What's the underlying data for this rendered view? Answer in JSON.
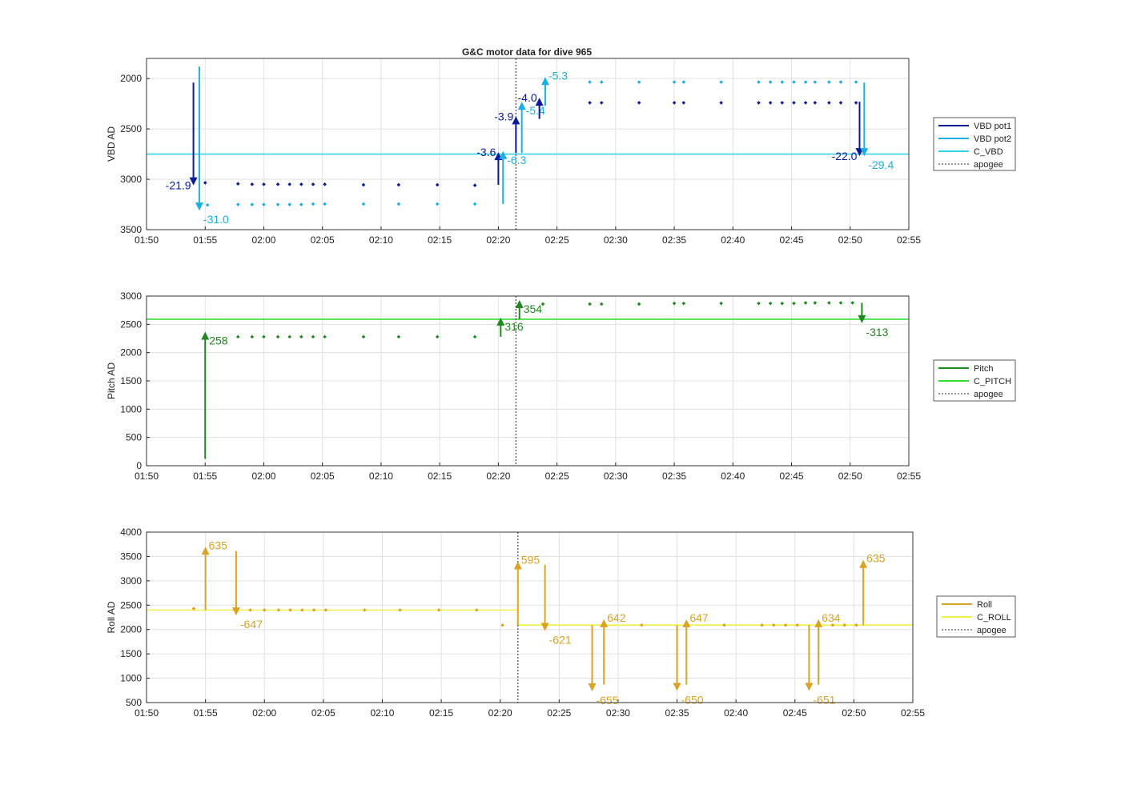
{
  "title": "G&C motor data for dive 965",
  "colors": {
    "vbd_pot1": "#0a1a9a",
    "vbd_pot2": "#1ab0e6",
    "c_vbd": "#38d2e8",
    "pitch": "#1e8a1e",
    "c_pitch": "#33dd33",
    "roll": "#d9a326",
    "c_roll": "#f2ee4a",
    "apogee": "#555555",
    "grid": "#e1e1e1",
    "axis": "#222222"
  },
  "chart_data": [
    {
      "type": "scatter",
      "ylabel": "VBD AD",
      "xlabel": "",
      "y_reversed": true,
      "xlim": [
        "01:50",
        "02:55"
      ],
      "ylim": [
        1800,
        3500
      ],
      "xticks": [
        "01:50",
        "01:55",
        "02:00",
        "02:05",
        "02:10",
        "02:15",
        "02:20",
        "02:25",
        "02:30",
        "02:35",
        "02:40",
        "02:45",
        "02:50",
        "02:55"
      ],
      "yticks": [
        "2000",
        "2500",
        "3000",
        "3500"
      ],
      "legend": {
        "placement": "right",
        "entries": [
          {
            "label": "VBD pot1",
            "color_key": "vbd_pot1",
            "style": "solid"
          },
          {
            "label": "VBD pot2",
            "color_key": "vbd_pot2",
            "style": "solid"
          },
          {
            "label": "C_VBD",
            "color_key": "c_vbd",
            "style": "solid"
          },
          {
            "label": "apogee",
            "color_key": "apogee",
            "style": "dotted"
          }
        ]
      },
      "apogee_x": "02:21.5",
      "hlines": [
        {
          "color_key": "c_vbd",
          "y": 2750
        }
      ],
      "series": [
        {
          "color_key": "vbd_pot1",
          "x": [
            "01:55.0",
            "01:57.8",
            "01:59.0",
            "02:00.0",
            "02:01.2",
            "02:02.2",
            "02:03.2",
            "02:04.2",
            "02:05.2",
            "02:08.5",
            "02:11.5",
            "02:14.8",
            "02:18.0",
            "02:27.8",
            "02:28.8",
            "02:32.0",
            "02:35.0",
            "02:35.8",
            "02:39.0",
            "02:42.2",
            "02:43.2",
            "02:44.2",
            "02:45.2",
            "02:46.2",
            "02:47.0",
            "02:48.2",
            "02:49.2",
            "02:50.5"
          ],
          "y": [
            3035,
            3045,
            3050,
            3050,
            3050,
            3050,
            3050,
            3050,
            3050,
            3055,
            3055,
            3055,
            3060,
            2240,
            2240,
            2240,
            2240,
            2240,
            2240,
            2240,
            2240,
            2240,
            2240,
            2240,
            2240,
            2240,
            2240,
            2240
          ]
        },
        {
          "color_key": "vbd_pot2",
          "x": [
            "01:55.2",
            "01:57.8",
            "01:59.0",
            "02:00.0",
            "02:01.2",
            "02:02.2",
            "02:03.2",
            "02:04.2",
            "02:05.2",
            "02:08.5",
            "02:11.5",
            "02:14.8",
            "02:18.0",
            "02:27.8",
            "02:28.8",
            "02:32.0",
            "02:35.0",
            "02:35.8",
            "02:39.0",
            "02:42.2",
            "02:43.2",
            "02:44.2",
            "02:45.2",
            "02:46.2",
            "02:47.0",
            "02:48.2",
            "02:49.2",
            "02:50.5"
          ],
          "y": [
            3255,
            3250,
            3250,
            3250,
            3250,
            3250,
            3250,
            3245,
            3245,
            3245,
            3245,
            3245,
            3245,
            2035,
            2035,
            2035,
            2035,
            2035,
            2035,
            2035,
            2035,
            2035,
            2035,
            2035,
            2035,
            2035,
            2035,
            2035
          ]
        }
      ],
      "arrows": [
        {
          "color_key": "vbd_pot1",
          "x": "01:54.0",
          "y_from": 2040,
          "y_to": 3060,
          "label": "-21.9",
          "label_side": "left"
        },
        {
          "color_key": "vbd_pot2",
          "x": "01:54.5",
          "y_from": 1880,
          "y_to": 3310,
          "label": "-31.0",
          "label_side": "below-right"
        },
        {
          "color_key": "vbd_pot1",
          "x": "02:20.0",
          "y_from": 3055,
          "y_to": 2730,
          "label": "-3.6",
          "label_side": "left"
        },
        {
          "color_key": "vbd_pot2",
          "x": "02:20.4",
          "y_from": 3245,
          "y_to": 2720,
          "label": "-6.3",
          "label_side": "below-right"
        },
        {
          "color_key": "vbd_pot1",
          "x": "02:21.5",
          "y_from": 2740,
          "y_to": 2375,
          "label": "-3.9",
          "label_side": "left"
        },
        {
          "color_key": "vbd_pot2",
          "x": "02:22.0",
          "y_from": 2740,
          "y_to": 2230,
          "label": "-5.4",
          "label_side": "below-right"
        },
        {
          "color_key": "vbd_pot1",
          "x": "02:23.5",
          "y_from": 2400,
          "y_to": 2190,
          "label": "-4.0",
          "label_side": "left"
        },
        {
          "color_key": "vbd_pot2",
          "x": "02:24.0",
          "y_from": 2270,
          "y_to": 1985,
          "label": "-5.3",
          "label_side": "right"
        },
        {
          "color_key": "vbd_pot1",
          "x": "02:50.8",
          "y_from": 2230,
          "y_to": 2770,
          "label": "-22.0",
          "label_side": "left"
        },
        {
          "color_key": "vbd_pot2",
          "x": "02:51.2",
          "y_from": 2040,
          "y_to": 2770,
          "label": "-29.4",
          "label_side": "below-right"
        }
      ]
    },
    {
      "type": "scatter",
      "ylabel": "Pitch AD",
      "xlabel": "",
      "xlim": [
        "01:50",
        "02:55"
      ],
      "ylim": [
        0,
        3000
      ],
      "xticks": [
        "01:50",
        "01:55",
        "02:00",
        "02:05",
        "02:10",
        "02:15",
        "02:20",
        "02:25",
        "02:30",
        "02:35",
        "02:40",
        "02:45",
        "02:50",
        "02:55"
      ],
      "yticks": [
        "0",
        "500",
        "1000",
        "1500",
        "2000",
        "2500",
        "3000"
      ],
      "legend": {
        "placement": "right",
        "entries": [
          {
            "label": "Pitch",
            "color_key": "pitch",
            "style": "solid"
          },
          {
            "label": "C_PITCH",
            "color_key": "c_pitch",
            "style": "solid"
          },
          {
            "label": "apogee",
            "color_key": "apogee",
            "style": "dotted"
          }
        ]
      },
      "apogee_x": "02:21.5",
      "hlines": [
        {
          "color_key": "c_pitch",
          "y": 2590
        }
      ],
      "series": [
        {
          "color_key": "pitch",
          "x": [
            "01:57.8",
            "01:59.0",
            "02:00.0",
            "02:01.2",
            "02:02.2",
            "02:03.2",
            "02:04.2",
            "02:05.2",
            "02:08.5",
            "02:11.5",
            "02:14.8",
            "02:18.0",
            "02:23.8",
            "02:27.8",
            "02:28.8",
            "02:32.0",
            "02:35.0",
            "02:35.8",
            "02:39.0",
            "02:42.2",
            "02:43.2",
            "02:44.2",
            "02:45.2",
            "02:46.2",
            "02:47.0",
            "02:48.2",
            "02:49.2",
            "02:50.2"
          ],
          "y": [
            2280,
            2280,
            2280,
            2280,
            2280,
            2280,
            2280,
            2280,
            2280,
            2280,
            2280,
            2280,
            2860,
            2860,
            2860,
            2860,
            2870,
            2870,
            2870,
            2870,
            2870,
            2870,
            2870,
            2880,
            2880,
            2880,
            2880,
            2880
          ]
        }
      ],
      "arrows": [
        {
          "color_key": "pitch",
          "x": "01:55.0",
          "y_from": 120,
          "y_to": 2370,
          "label": "258",
          "label_side": "below-right"
        },
        {
          "color_key": "pitch",
          "x": "02:20.2",
          "y_from": 2280,
          "y_to": 2620,
          "label": "316",
          "label_side": "below-right"
        },
        {
          "color_key": "pitch",
          "x": "02:21.8",
          "y_from": 2590,
          "y_to": 2930,
          "label": "354",
          "label_side": "below-right"
        },
        {
          "color_key": "pitch",
          "x": "02:51.0",
          "y_from": 2880,
          "y_to": 2520,
          "label": "-313",
          "label_side": "below-right"
        }
      ]
    },
    {
      "type": "scatter",
      "ylabel": "Roll AD",
      "xlabel": "",
      "xlim": [
        "01:50",
        "02:55"
      ],
      "ylim": [
        500,
        4000
      ],
      "xticks": [
        "01:50",
        "01:55",
        "02:00",
        "02:05",
        "02:10",
        "02:15",
        "02:20",
        "02:25",
        "02:30",
        "02:35",
        "02:40",
        "02:45",
        "02:50",
        "02:55"
      ],
      "yticks": [
        "500",
        "1000",
        "1500",
        "2000",
        "2500",
        "3000",
        "3500",
        "4000"
      ],
      "legend": {
        "placement": "right",
        "entries": [
          {
            "label": "Roll",
            "color_key": "roll",
            "style": "solid"
          },
          {
            "label": "C_ROLL",
            "color_key": "c_roll",
            "style": "solid"
          },
          {
            "label": "apogee",
            "color_key": "apogee",
            "style": "dotted"
          }
        ]
      },
      "apogee_x": "02:21.5",
      "hlines": [
        {
          "color_key": "c_roll",
          "y": 2400,
          "x_from": "01:50",
          "x_to": "02:21.5"
        },
        {
          "color_key": "c_roll",
          "y": 2090,
          "x_from": "02:21.5",
          "x_to": "02:55"
        }
      ],
      "series": [
        {
          "color_key": "roll",
          "x": [
            "01:54.0",
            "01:58.8",
            "02:00.0",
            "02:01.2",
            "02:02.2",
            "02:03.2",
            "02:04.2",
            "02:05.2",
            "02:08.5",
            "02:11.5",
            "02:14.8",
            "02:18.0",
            "02:20.2",
            "02:32.0",
            "02:39.0",
            "02:42.2",
            "02:43.2",
            "02:44.2",
            "02:45.2",
            "02:48.2",
            "02:49.2",
            "02:50.2"
          ],
          "y": [
            2430,
            2400,
            2400,
            2400,
            2400,
            2400,
            2400,
            2400,
            2400,
            2400,
            2400,
            2400,
            2090,
            2090,
            2090,
            2090,
            2090,
            2090,
            2090,
            2090,
            2090,
            2090
          ]
        }
      ],
      "arrows": [
        {
          "color_key": "roll",
          "x": "01:55.0",
          "y_from": 2400,
          "y_to": 3700,
          "label": "635",
          "label_side": "right"
        },
        {
          "color_key": "roll",
          "x": "01:57.6",
          "y_from": 3610,
          "y_to": 2290,
          "label": "-647",
          "label_side": "below-right"
        },
        {
          "color_key": "roll",
          "x": "02:21.5",
          "y_from": 2090,
          "y_to": 3400,
          "label": "595",
          "label_side": "right"
        },
        {
          "color_key": "roll",
          "x": "02:23.8",
          "y_from": 3330,
          "y_to": 1970,
          "label": "-621",
          "label_side": "below-right"
        },
        {
          "color_key": "roll",
          "x": "02:27.8",
          "y_from": 2090,
          "y_to": 730,
          "label": "-655",
          "label_side": "below-right"
        },
        {
          "color_key": "roll",
          "x": "02:28.8",
          "y_from": 870,
          "y_to": 2210,
          "label": "642",
          "label_side": "right"
        },
        {
          "color_key": "roll",
          "x": "02:35.0",
          "y_from": 2090,
          "y_to": 740,
          "label": "-650",
          "label_side": "below-right"
        },
        {
          "color_key": "roll",
          "x": "02:35.8",
          "y_from": 870,
          "y_to": 2210,
          "label": "647",
          "label_side": "right"
        },
        {
          "color_key": "roll",
          "x": "02:46.2",
          "y_from": 2090,
          "y_to": 740,
          "label": "-651",
          "label_side": "below-right"
        },
        {
          "color_key": "roll",
          "x": "02:47.0",
          "y_from": 870,
          "y_to": 2210,
          "label": "634",
          "label_side": "right"
        },
        {
          "color_key": "roll",
          "x": "02:50.8",
          "y_from": 2090,
          "y_to": 3430,
          "label": "635",
          "label_side": "right"
        }
      ]
    }
  ]
}
